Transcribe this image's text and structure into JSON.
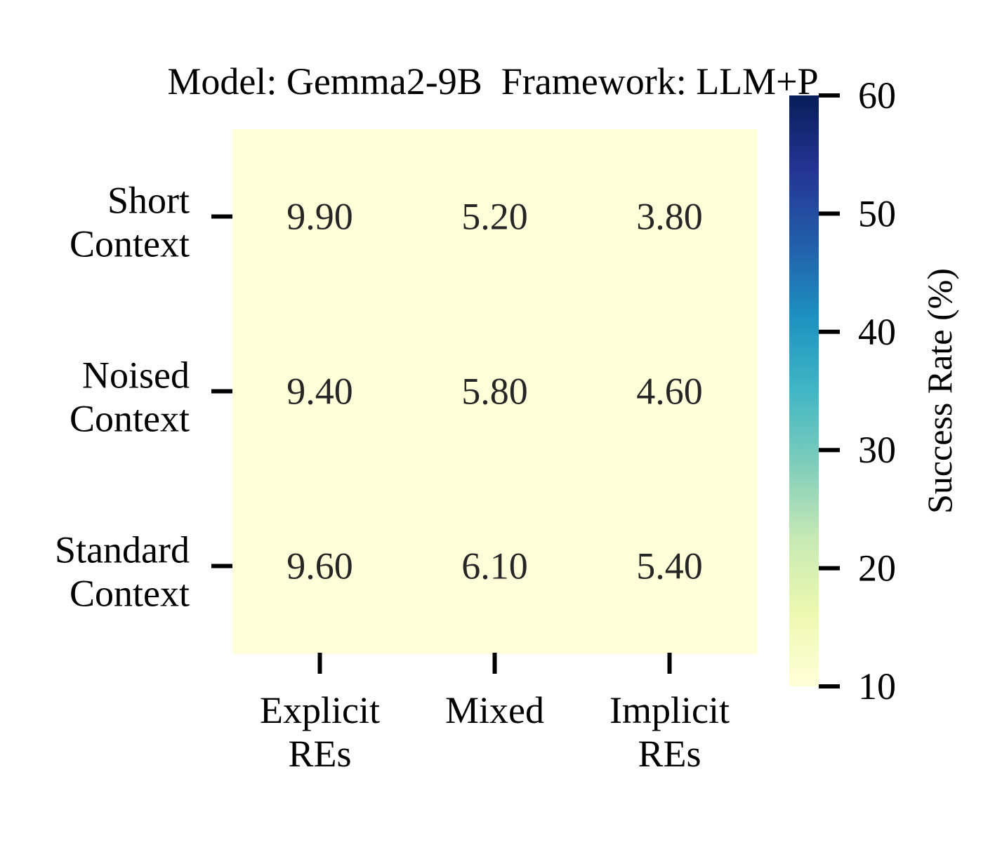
{
  "chart_data": {
    "type": "heatmap",
    "title": "Model: Gemma2-9B  Framework: LLM+P",
    "rows": [
      [
        "Short",
        "Context"
      ],
      [
        "Noised",
        "Context"
      ],
      [
        "Standard",
        "Context"
      ]
    ],
    "columns": [
      [
        "Explicit",
        "REs"
      ],
      [
        "Mixed"
      ],
      [
        "Implicit",
        "REs"
      ]
    ],
    "values": [
      [
        9.9,
        5.2,
        3.8
      ],
      [
        9.4,
        5.8,
        4.6
      ],
      [
        9.6,
        6.1,
        5.4
      ]
    ],
    "value_labels": [
      [
        "9.90",
        "5.20",
        "3.80"
      ],
      [
        "9.40",
        "5.80",
        "4.60"
      ],
      [
        "9.60",
        "6.10",
        "5.40"
      ]
    ],
    "colorbar": {
      "label": "Success Rate (%)",
      "range": [
        10,
        60
      ],
      "ticks": [
        "10",
        "20",
        "30",
        "40",
        "50",
        "60"
      ],
      "colormap": "YlGnBu",
      "colors": [
        "#ffffd9",
        "#edf8b1",
        "#c7e9b4",
        "#7fcdbb",
        "#41b6c4",
        "#1d91c0",
        "#225ea8",
        "#253494",
        "#081d58"
      ]
    },
    "cell_color": "#ffffd9",
    "annotation_color": "#262626"
  }
}
